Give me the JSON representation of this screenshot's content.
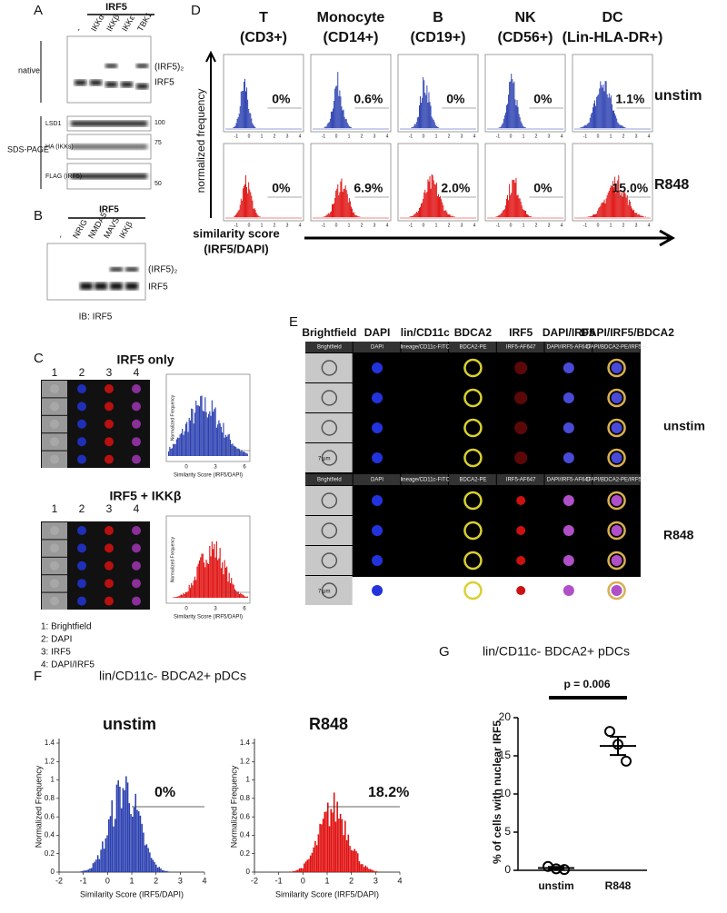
{
  "panel_a": {
    "letter": "A",
    "header": "IRF5",
    "lanes": [
      "-",
      "IKKα",
      "IKKβ",
      "IKKε",
      "TBK1"
    ],
    "native": "native",
    "sds": "SDS-PAGE",
    "dimer": "(IRF5)₂",
    "monomer": "IRF5",
    "blots": [
      "LSD1",
      "HA (IKKs)",
      "FLAG (IRF5)"
    ],
    "mw": [
      "100",
      "75",
      "50"
    ]
  },
  "panel_b": {
    "letter": "B",
    "header": "IRF5",
    "lanes": [
      "-",
      "NRIG",
      "NMDA5",
      "MAVS",
      "IKKβ"
    ],
    "dimer": "(IRF5)₂",
    "monomer": "IRF5",
    "footer": "IB: IRF5"
  },
  "panel_c": {
    "letter": "C",
    "titles": [
      "IRF5 only",
      "IRF5 + IKKβ"
    ],
    "columns": [
      "1",
      "2",
      "3",
      "4"
    ],
    "y_label": "Normalized Frequency",
    "x_label": "Similarity Score (IRF5/DAPI)",
    "xticks": [
      0,
      3,
      6
    ],
    "legend": [
      "1: Brightfield",
      "2: DAPI",
      "3: IRF5",
      "4: DAPI/IRF5"
    ]
  },
  "panel_d": {
    "letter": "D",
    "columns": [
      {
        "name": "T",
        "marker": "(CD3+)"
      },
      {
        "name": "Monocyte",
        "marker": "(CD14+)"
      },
      {
        "name": "B",
        "marker": "(CD19+)"
      },
      {
        "name": "NK",
        "marker": "(CD56+)"
      },
      {
        "name": "DC",
        "marker": "(Lin-HLA-DR+)"
      }
    ],
    "rows": [
      "unstim",
      "R848"
    ],
    "percents": [
      [
        "0%",
        "0.6%",
        "0%",
        "0%",
        "1.1%"
      ],
      [
        "0%",
        "6.9%",
        "2.0%",
        "0%",
        "15.0%"
      ]
    ],
    "y_label": "normalized frequency",
    "x_label": [
      "similarity score",
      "(IRF5/DAPI)"
    ],
    "xticks": [
      -1,
      0,
      1,
      2,
      3,
      4
    ]
  },
  "panel_e": {
    "letter": "E",
    "headers": [
      "Brightfield",
      "DAPI",
      "lin/CD11c",
      "BDCA2",
      "IRF5",
      "DAPI/IRF5",
      "DAPI/IRF5/BDCA2"
    ],
    "channels": [
      "Brightfield",
      "DAPI",
      "lineage/CD11c-FITC",
      "BDCA2-PE",
      "IRF5-AF647",
      "DAPI/IRF5-AF647",
      "DAPI/BDCA2-PE/IRF5-A"
    ],
    "rows": [
      "unstim",
      "R848"
    ],
    "scale": "7 μm"
  },
  "panel_f": {
    "letter": "F",
    "title": "lin/CD11c- BDCA2+ pDCs",
    "plots": [
      {
        "label": "unstim",
        "percent": "0%"
      },
      {
        "label": "R848",
        "percent": "18.2%"
      }
    ],
    "y_label": "Normalized Frequency",
    "x_label": "Similarity Score (IRF5/DAPI)",
    "xlim": [
      -2,
      4
    ],
    "xticks": [
      -2,
      -1,
      0,
      1,
      2,
      3,
      4
    ],
    "ylim": [
      0,
      1.4
    ],
    "yticks": [
      0,
      0.2,
      0.4,
      0.6,
      0.8,
      1,
      1.2,
      1.4
    ]
  },
  "panel_g": {
    "letter": "G",
    "title": "lin/CD11c- BDCA2+ pDCs",
    "y_label": "% of cells with nuclear IRF5",
    "p_value": "p = 0.006",
    "ylim": [
      0,
      20
    ],
    "yticks": [
      0,
      5,
      10,
      15,
      20
    ],
    "groups": [
      {
        "name": "unstim",
        "points": [
          0.5,
          0.2,
          0.1
        ],
        "mean": 0.3,
        "error": 0.15
      },
      {
        "name": "R848",
        "points": [
          18.2,
          16.5,
          14.3
        ],
        "mean": 16.3,
        "error": 1.2
      }
    ]
  }
}
